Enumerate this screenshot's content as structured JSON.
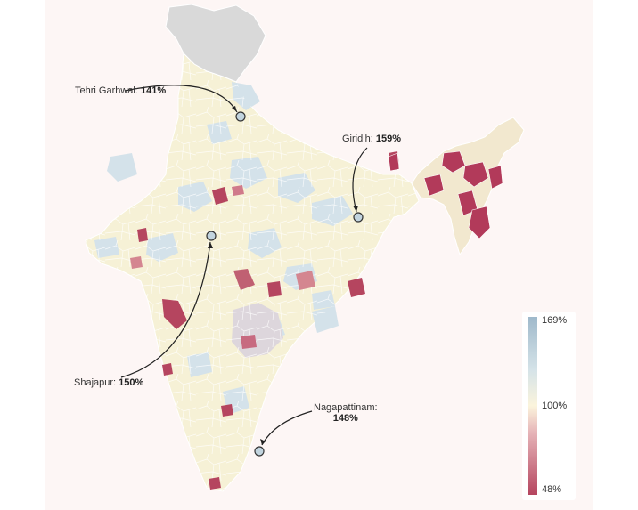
{
  "map": {
    "gray_region": "Jammu & Kashmir / Ladakh (no data)"
  },
  "callouts": [
    {
      "name": "Tehri Garhwal",
      "value": "141%"
    },
    {
      "name": "Giridih",
      "value": "159%"
    },
    {
      "name": "Shajapur",
      "value": "150%"
    },
    {
      "name": "Nagapattinam",
      "value": "148%"
    }
  ],
  "legend": {
    "max_label": "169%",
    "mid_label": "100%",
    "min_label": "48%",
    "colors": {
      "high": "#9fb9cb",
      "mid": "#fbf4dc",
      "low": "#b5455f"
    }
  },
  "colors": {
    "background": "#fdf6f5",
    "no_data": "#d9d9d9",
    "border": "#ffffff"
  }
}
